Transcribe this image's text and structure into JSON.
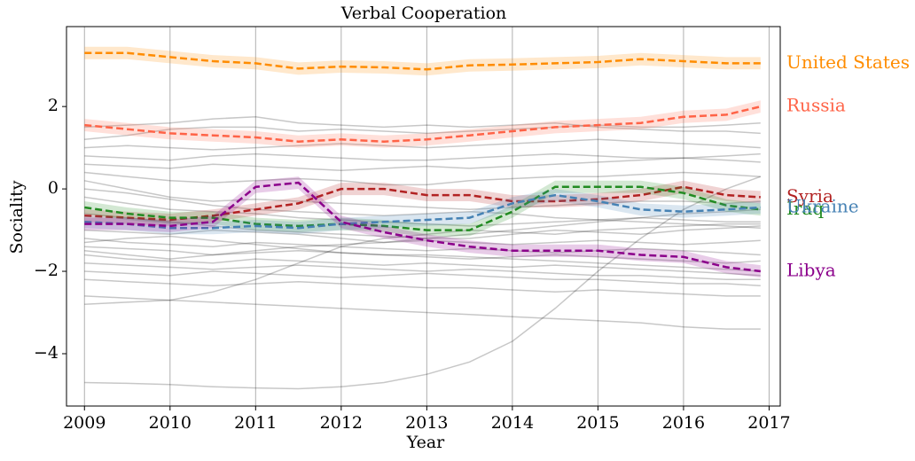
{
  "chart_data": {
    "type": "line",
    "title": "Verbal Cooperation",
    "x_label": "Year",
    "y_label": "Sociality",
    "x": [
      2009,
      2009.5,
      2010,
      2010.5,
      2011,
      2011.5,
      2012,
      2012.5,
      2013,
      2013.5,
      2014,
      2014.5,
      2015,
      2015.5,
      2016,
      2016.5,
      2016.9
    ],
    "xlim": [
      2008.79,
      2017.13
    ],
    "xticks": [
      2009,
      2010,
      2011,
      2012,
      2013,
      2014,
      2015,
      2016,
      2017
    ],
    "ylim": [
      -5.27,
      3.94
    ],
    "yticks": [
      {
        "value": -4,
        "label": "−4"
      },
      {
        "value": -2,
        "label": "−2"
      },
      0,
      2
    ],
    "grid": "x",
    "series": [
      {
        "name": "United States",
        "color": "#ff8c00",
        "values": [
          3.3,
          3.3,
          3.2,
          3.1,
          3.05,
          2.92,
          2.97,
          2.95,
          2.9,
          3.0,
          3.02,
          3.05,
          3.08,
          3.15,
          3.1,
          3.05,
          3.05
        ]
      },
      {
        "name": "Russia",
        "color": "#ff6347",
        "values": [
          1.55,
          1.45,
          1.35,
          1.3,
          1.25,
          1.15,
          1.2,
          1.15,
          1.2,
          1.3,
          1.4,
          1.5,
          1.55,
          1.6,
          1.75,
          1.8,
          2.0
        ]
      },
      {
        "name": "Syria",
        "color": "#b22222",
        "values": [
          -0.65,
          -0.7,
          -0.75,
          -0.65,
          -0.5,
          -0.35,
          0.0,
          0.0,
          -0.15,
          -0.15,
          -0.3,
          -0.3,
          -0.25,
          -0.15,
          0.05,
          -0.15,
          -0.2
        ]
      },
      {
        "name": "Iraq",
        "color": "#228b22",
        "values": [
          -0.45,
          -0.6,
          -0.7,
          -0.7,
          -0.85,
          -0.9,
          -0.85,
          -0.9,
          -1.0,
          -1.0,
          -0.55,
          0.05,
          0.05,
          0.05,
          -0.1,
          -0.4,
          -0.5
        ]
      },
      {
        "name": "Ukraine",
        "color": "#4682b4",
        "values": [
          -0.8,
          -0.85,
          -0.95,
          -0.95,
          -0.9,
          -0.95,
          -0.85,
          -0.8,
          -0.75,
          -0.7,
          -0.35,
          -0.15,
          -0.3,
          -0.5,
          -0.55,
          -0.5,
          -0.45
        ]
      },
      {
        "name": "Libya",
        "color": "#8b008b",
        "values": [
          -0.85,
          -0.85,
          -0.9,
          -0.8,
          0.05,
          0.15,
          -0.8,
          -1.05,
          -1.25,
          -1.4,
          -1.5,
          -1.5,
          -1.5,
          -1.6,
          -1.65,
          -1.9,
          -2.0
        ]
      }
    ],
    "background_color": "#000000",
    "background_series": [
      {
        "values": [
          1.5,
          1.55,
          1.6,
          1.7,
          1.75,
          1.6,
          1.55,
          1.5,
          1.55,
          1.5,
          1.55,
          1.6,
          1.5,
          1.45,
          1.4,
          1.4,
          1.35
        ]
      },
      {
        "values": [
          1.2,
          1.3,
          1.45,
          1.5,
          1.5,
          1.4,
          1.45,
          1.4,
          1.35,
          1.4,
          1.45,
          1.5,
          1.55,
          1.5,
          1.5,
          1.55,
          1.6
        ]
      },
      {
        "values": [
          0.8,
          0.75,
          0.7,
          0.8,
          0.85,
          0.8,
          0.75,
          0.7,
          0.7,
          0.75,
          0.8,
          0.85,
          0.8,
          0.75,
          0.75,
          0.7,
          0.65
        ]
      },
      {
        "values": [
          0.6,
          0.55,
          0.5,
          0.6,
          0.55,
          0.5,
          0.45,
          0.5,
          0.55,
          0.5,
          0.55,
          0.6,
          0.65,
          0.7,
          0.75,
          0.8,
          0.85
        ]
      },
      {
        "values": [
          0.4,
          0.3,
          0.2,
          0.15,
          0.2,
          0.25,
          0.2,
          0.1,
          0.1,
          0.2,
          0.25,
          0.3,
          0.3,
          0.35,
          0.4,
          0.35,
          0.3
        ]
      },
      {
        "values": [
          0.2,
          0.0,
          -0.2,
          -0.3,
          -0.25,
          -0.3,
          -0.35,
          -0.4,
          -0.45,
          -0.5,
          -0.45,
          -0.4,
          -0.35,
          -0.3,
          -0.3,
          -0.35,
          -0.3
        ]
      },
      {
        "values": [
          -0.2,
          -0.35,
          -0.5,
          -0.55,
          -0.6,
          -0.7,
          -0.75,
          -0.8,
          -0.85,
          -0.9,
          -0.85,
          -0.8,
          -0.75,
          -0.7,
          -0.75,
          -0.8,
          -0.8
        ]
      },
      {
        "values": [
          -0.6,
          -0.7,
          -0.8,
          -0.9,
          -1.0,
          -1.05,
          -1.1,
          -1.15,
          -1.2,
          -1.2,
          -1.1,
          -1.0,
          -1.05,
          -1.1,
          -1.0,
          -0.95,
          -0.9
        ]
      },
      {
        "values": [
          -1.0,
          -1.05,
          -1.1,
          -1.0,
          -1.05,
          -1.1,
          -1.2,
          -1.3,
          -1.25,
          -1.3,
          -1.35,
          -1.3,
          -1.25,
          -1.3,
          -1.35,
          -1.3,
          -1.25
        ]
      },
      {
        "values": [
          -1.2,
          -1.3,
          -1.35,
          -1.4,
          -1.3,
          -1.35,
          -1.4,
          -1.45,
          -1.5,
          -1.45,
          -1.5,
          -1.55,
          -1.5,
          -1.45,
          -1.5,
          -1.55,
          -1.6
        ]
      },
      {
        "values": [
          -1.4,
          -1.45,
          -1.5,
          -1.6,
          -1.55,
          -1.5,
          -1.55,
          -1.6,
          -1.65,
          -1.7,
          -1.65,
          -1.6,
          -1.65,
          -1.7,
          -1.75,
          -1.8,
          -1.75
        ]
      },
      {
        "values": [
          -1.6,
          -1.7,
          -1.75,
          -1.8,
          -1.7,
          -1.75,
          -1.8,
          -1.85,
          -1.8,
          -1.85,
          -1.9,
          -1.85,
          -1.9,
          -1.95,
          -2.0,
          -2.05,
          -2.1
        ]
      },
      {
        "values": [
          -1.8,
          -1.85,
          -1.9,
          -1.95,
          -1.9,
          -1.85,
          -1.9,
          -1.95,
          -2.0,
          -1.95,
          -2.0,
          -2.05,
          -2.1,
          -2.1,
          -2.15,
          -2.2,
          -2.2
        ]
      },
      {
        "values": [
          -2.0,
          -2.05,
          -2.1,
          -2.0,
          -2.05,
          -2.1,
          -2.15,
          -2.1,
          -2.05,
          -2.1,
          -2.15,
          -2.2,
          -2.2,
          -2.25,
          -2.3,
          -2.3,
          -2.35
        ]
      },
      {
        "values": [
          -2.2,
          -2.25,
          -2.3,
          -2.35,
          -2.3,
          -2.25,
          -2.3,
          -2.35,
          -2.4,
          -2.4,
          -2.45,
          -2.5,
          -2.45,
          -2.5,
          -2.55,
          -2.6,
          -2.6
        ]
      },
      {
        "values": [
          -2.6,
          -2.65,
          -2.7,
          -2.75,
          -2.8,
          -2.85,
          -2.9,
          -2.95,
          -3.0,
          -3.05,
          -3.1,
          -3.15,
          -3.2,
          -3.25,
          -3.35,
          -3.4,
          -3.4
        ]
      },
      {
        "values": [
          -2.8,
          -2.75,
          -2.7,
          -2.5,
          -2.2,
          -1.8,
          -1.4,
          -1.2,
          -1.1,
          -1.0,
          -1.05,
          -1.1,
          -1.0,
          -0.95,
          -0.9,
          -0.85,
          -0.85
        ]
      },
      {
        "values": [
          -1.5,
          -1.6,
          -1.7,
          -1.6,
          -1.5,
          -1.4,
          -1.35,
          -1.3,
          -1.2,
          -1.1,
          -1.0,
          -0.9,
          -0.8,
          -0.7,
          -0.6,
          -0.55,
          -0.5
        ]
      },
      {
        "values": [
          0.0,
          -0.1,
          -0.25,
          -0.4,
          -0.5,
          -0.55,
          -0.6,
          -0.65,
          -0.6,
          -0.55,
          -0.6,
          -0.7,
          -0.75,
          -0.8,
          -0.85,
          -0.9,
          -0.95
        ]
      },
      {
        "values": [
          -4.7,
          -4.72,
          -4.75,
          -4.8,
          -4.83,
          -4.85,
          -4.8,
          -4.7,
          -4.5,
          -4.2,
          -3.7,
          -2.9,
          -2.0,
          -1.2,
          -0.5,
          0.0,
          0.3
        ]
      },
      {
        "values": [
          1.0,
          1.05,
          1.0,
          0.95,
          1.0,
          1.05,
          1.1,
          1.05,
          1.0,
          1.05,
          1.1,
          1.15,
          1.2,
          1.15,
          1.1,
          1.05,
          1.0
        ]
      },
      {
        "values": [
          -1.3,
          -1.2,
          -1.15,
          -1.25,
          -1.35,
          -1.45,
          -1.55,
          -1.6,
          -1.6,
          -1.65,
          -1.7,
          -1.75,
          -1.8,
          -1.85,
          -1.9,
          -1.95,
          -2.0
        ]
      }
    ]
  }
}
